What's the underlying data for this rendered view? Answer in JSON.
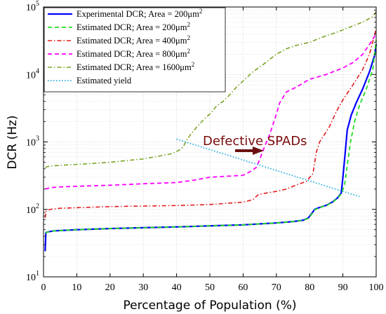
{
  "chart_data": {
    "type": "line",
    "xlabel": "Percentage of Population (%)",
    "ylabel": "DCR (Hz)",
    "xlim": [
      0,
      100
    ],
    "ylim": [
      10,
      100000
    ],
    "yscale": "log",
    "grid": true,
    "legend_position": "top-left",
    "x_ticks": [
      "0",
      "10",
      "20",
      "30",
      "40",
      "50",
      "60",
      "70",
      "80",
      "90",
      "100"
    ],
    "y_ticks": [
      {
        "base": "10",
        "exp": "1"
      },
      {
        "base": "10",
        "exp": "2"
      },
      {
        "base": "10",
        "exp": "3"
      },
      {
        "base": "10",
        "exp": "4"
      },
      {
        "base": "10",
        "exp": "5"
      }
    ],
    "series": [
      {
        "name": "Experimental DCR; Area = 200μm",
        "name_sup": "2",
        "color": "#0000ff",
        "dash": "solid",
        "points": [
          [
            0.5,
            24
          ],
          [
            0.6,
            33
          ],
          [
            0.7,
            45
          ],
          [
            1,
            46
          ],
          [
            3,
            48
          ],
          [
            10,
            50
          ],
          [
            20,
            52
          ],
          [
            30,
            53.5
          ],
          [
            40,
            55
          ],
          [
            50,
            57
          ],
          [
            60,
            59
          ],
          [
            70,
            63
          ],
          [
            75,
            66
          ],
          [
            78,
            69
          ],
          [
            79.5,
            74
          ],
          [
            80.5,
            85
          ],
          [
            81.5,
            100
          ],
          [
            83,
            107
          ],
          [
            85,
            115
          ],
          [
            87,
            130
          ],
          [
            88.5,
            150
          ],
          [
            89.5,
            175
          ],
          [
            90,
            300
          ],
          [
            90.7,
            700
          ],
          [
            91.3,
            1500
          ],
          [
            92.5,
            2500
          ],
          [
            94,
            3800
          ],
          [
            96,
            6200
          ],
          [
            98,
            11000
          ],
          [
            99.5,
            19000
          ],
          [
            100,
            28000
          ]
        ]
      },
      {
        "name": "Estimated DCR; Area = 200μm",
        "name_sup": "2",
        "color": "#22dd22",
        "dash": "dash",
        "points": [
          [
            0.7,
            44
          ],
          [
            1,
            46
          ],
          [
            3,
            48
          ],
          [
            10,
            50
          ],
          [
            20,
            52
          ],
          [
            30,
            53.5
          ],
          [
            40,
            55
          ],
          [
            50,
            57
          ],
          [
            60,
            59
          ],
          [
            70,
            63
          ],
          [
            75,
            66
          ],
          [
            78,
            69
          ],
          [
            79.5,
            73
          ],
          [
            80.5,
            83
          ],
          [
            81.5,
            98
          ],
          [
            83,
            107
          ],
          [
            85,
            114
          ],
          [
            87,
            128
          ],
          [
            88.5,
            148
          ],
          [
            89.5,
            170
          ],
          [
            90.5,
            230
          ],
          [
            91.3,
            450
          ],
          [
            92.3,
            1000
          ],
          [
            93.5,
            2000
          ],
          [
            95,
            3500
          ],
          [
            97,
            6000
          ],
          [
            99,
            12000
          ],
          [
            100,
            32000
          ]
        ]
      },
      {
        "name": "Estimated DCR; Area = 400μm",
        "name_sup": "2",
        "color": "#e31a1c",
        "dash": "dashdot",
        "points": [
          [
            0.5,
            75
          ],
          [
            0.8,
            95
          ],
          [
            2,
            100
          ],
          [
            5,
            104
          ],
          [
            10,
            106
          ],
          [
            20,
            110
          ],
          [
            30,
            112
          ],
          [
            40,
            114
          ],
          [
            50,
            118
          ],
          [
            60,
            128
          ],
          [
            63,
            140
          ],
          [
            64.5,
            165
          ],
          [
            67,
            175
          ],
          [
            70,
            185
          ],
          [
            73,
            200
          ],
          [
            76,
            230
          ],
          [
            79,
            260
          ],
          [
            81,
            340
          ],
          [
            82,
            700
          ],
          [
            83,
            1000
          ],
          [
            84.5,
            1300
          ],
          [
            86,
            1700
          ],
          [
            88,
            2800
          ],
          [
            90,
            4200
          ],
          [
            93,
            7000
          ],
          [
            96,
            12000
          ],
          [
            98,
            20000
          ],
          [
            100,
            48000
          ]
        ]
      },
      {
        "name": "Estimated DCR; Area = 800μm",
        "name_sup": "2",
        "color": "#ff00ff",
        "dash": "dash",
        "points": [
          [
            0.5,
            200
          ],
          [
            2,
            210
          ],
          [
            5,
            215
          ],
          [
            10,
            220
          ],
          [
            20,
            228
          ],
          [
            30,
            240
          ],
          [
            40,
            250
          ],
          [
            45,
            270
          ],
          [
            50,
            300
          ],
          [
            55,
            310
          ],
          [
            60,
            320
          ],
          [
            62,
            360
          ],
          [
            64,
            420
          ],
          [
            65,
            550
          ],
          [
            66,
            750
          ],
          [
            68,
            1300
          ],
          [
            70,
            2600
          ],
          [
            71,
            3800
          ],
          [
            73,
            5500
          ],
          [
            76,
            6500
          ],
          [
            80,
            8500
          ],
          [
            85,
            10000
          ],
          [
            90,
            12500
          ],
          [
            93,
            15000
          ],
          [
            96,
            20000
          ],
          [
            98,
            28000
          ],
          [
            100,
            40000
          ]
        ]
      },
      {
        "name": "Estimated DCR; Area = 1600μm",
        "name_sup": "2",
        "color": "#7ba428",
        "dash": "dashdot",
        "points": [
          [
            0.5,
            420
          ],
          [
            2,
            440
          ],
          [
            5,
            450
          ],
          [
            10,
            465
          ],
          [
            15,
            480
          ],
          [
            20,
            500
          ],
          [
            25,
            530
          ],
          [
            30,
            560
          ],
          [
            35,
            620
          ],
          [
            38,
            660
          ],
          [
            40,
            720
          ],
          [
            41,
            770
          ],
          [
            42,
            850
          ],
          [
            43,
            1050
          ],
          [
            44,
            1250
          ],
          [
            46,
            1650
          ],
          [
            48,
            2100
          ],
          [
            50,
            2600
          ],
          [
            52,
            3400
          ],
          [
            54,
            4000
          ],
          [
            56,
            5000
          ],
          [
            58,
            6500
          ],
          [
            60,
            8000
          ],
          [
            63,
            11000
          ],
          [
            66,
            14000
          ],
          [
            70,
            20000
          ],
          [
            73,
            24000
          ],
          [
            76,
            27000
          ],
          [
            80,
            30000
          ],
          [
            84,
            36000
          ],
          [
            88,
            42000
          ],
          [
            92,
            50000
          ],
          [
            96,
            60000
          ],
          [
            99,
            72000
          ],
          [
            100,
            85000
          ]
        ]
      },
      {
        "name": "Estimated yield",
        "name_sup": "",
        "color": "#22aadd",
        "dash": "dot",
        "points": [
          [
            40,
            1100
          ],
          [
            95,
            155
          ]
        ]
      }
    ],
    "annotations": [
      {
        "text": "Defective SPADs",
        "arrow_color": "#6b0f0f"
      }
    ]
  }
}
